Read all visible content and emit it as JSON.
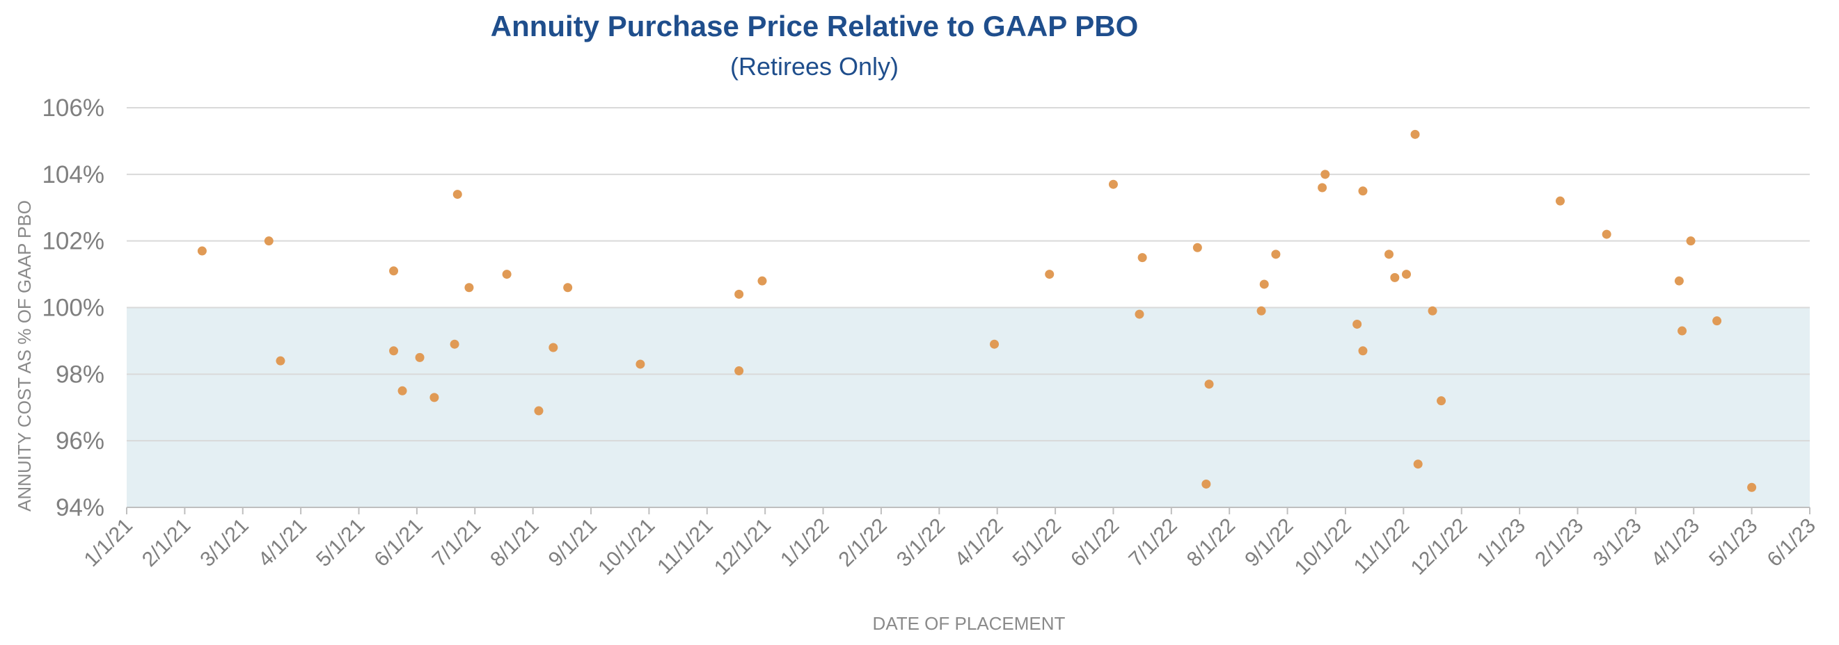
{
  "colors": {
    "title": "#1f4e8c",
    "point": "#e09a55",
    "band": "#e4eff3",
    "grid": "#d9d9d9",
    "axis": "#bfbfbf",
    "tick_text": "#7f7f7f"
  },
  "chart_data": {
    "type": "scatter",
    "title": "Annuity Purchase Price Relative to GAAP PBO",
    "subtitle": "(Retirees Only)",
    "xlabel": "DATE OF PLACEMENT",
    "ylabel": "ANNUITY COST AS % OF GAAP PBO",
    "ylim": [
      94,
      106
    ],
    "yticks": [
      94,
      96,
      98,
      100,
      102,
      104,
      106
    ],
    "ytick_labels": [
      "94%",
      "96%",
      "98%",
      "100%",
      "102%",
      "104%",
      "106%"
    ],
    "shaded_band": [
      94,
      100
    ],
    "xlim_months": [
      0,
      29
    ],
    "xtick_labels": [
      "1/1/21",
      "2/1/21",
      "3/1/21",
      "4/1/21",
      "5/1/21",
      "6/1/21",
      "7/1/21",
      "8/1/21",
      "9/1/21",
      "10/1/21",
      "11/1/21",
      "12/1/21",
      "1/1/22",
      "2/1/22",
      "3/1/22",
      "4/1/22",
      "5/1/22",
      "6/1/22",
      "7/1/22",
      "8/1/22",
      "9/1/22",
      "10/1/22",
      "11/1/22",
      "12/1/22",
      "1/1/23",
      "2/1/23",
      "3/1/23",
      "4/1/23",
      "5/1/23",
      "6/1/23"
    ],
    "points": [
      {
        "x": 1.3,
        "y": 101.7
      },
      {
        "x": 2.45,
        "y": 102.0
      },
      {
        "x": 2.65,
        "y": 98.4
      },
      {
        "x": 4.6,
        "y": 101.1
      },
      {
        "x": 4.6,
        "y": 98.7
      },
      {
        "x": 4.75,
        "y": 97.5
      },
      {
        "x": 5.05,
        "y": 98.5
      },
      {
        "x": 5.3,
        "y": 97.3
      },
      {
        "x": 5.65,
        "y": 98.9
      },
      {
        "x": 5.7,
        "y": 103.4
      },
      {
        "x": 5.9,
        "y": 100.6
      },
      {
        "x": 6.55,
        "y": 101.0
      },
      {
        "x": 7.1,
        "y": 96.9
      },
      {
        "x": 7.35,
        "y": 98.8
      },
      {
        "x": 7.6,
        "y": 100.6
      },
      {
        "x": 8.85,
        "y": 98.3
      },
      {
        "x": 10.55,
        "y": 100.4
      },
      {
        "x": 10.55,
        "y": 98.1
      },
      {
        "x": 10.95,
        "y": 100.8
      },
      {
        "x": 14.95,
        "y": 98.9
      },
      {
        "x": 15.9,
        "y": 101.0
      },
      {
        "x": 17.0,
        "y": 103.7
      },
      {
        "x": 17.45,
        "y": 99.8
      },
      {
        "x": 17.5,
        "y": 101.5
      },
      {
        "x": 18.45,
        "y": 101.8
      },
      {
        "x": 18.6,
        "y": 94.7
      },
      {
        "x": 18.65,
        "y": 97.7
      },
      {
        "x": 19.55,
        "y": 99.9
      },
      {
        "x": 19.6,
        "y": 100.7
      },
      {
        "x": 19.8,
        "y": 101.6
      },
      {
        "x": 20.6,
        "y": 103.6
      },
      {
        "x": 20.65,
        "y": 104.0
      },
      {
        "x": 21.2,
        "y": 99.5
      },
      {
        "x": 21.3,
        "y": 98.7
      },
      {
        "x": 21.3,
        "y": 103.5
      },
      {
        "x": 21.75,
        "y": 101.6
      },
      {
        "x": 21.85,
        "y": 100.9
      },
      {
        "x": 22.05,
        "y": 101.0
      },
      {
        "x": 22.2,
        "y": 105.2
      },
      {
        "x": 22.25,
        "y": 95.3
      },
      {
        "x": 22.5,
        "y": 99.9
      },
      {
        "x": 22.65,
        "y": 97.2
      },
      {
        "x": 24.7,
        "y": 103.2
      },
      {
        "x": 25.5,
        "y": 102.2
      },
      {
        "x": 26.75,
        "y": 100.8
      },
      {
        "x": 26.8,
        "y": 99.3
      },
      {
        "x": 26.95,
        "y": 102.0
      },
      {
        "x": 27.4,
        "y": 99.6
      },
      {
        "x": 28.0,
        "y": 94.6
      }
    ]
  }
}
